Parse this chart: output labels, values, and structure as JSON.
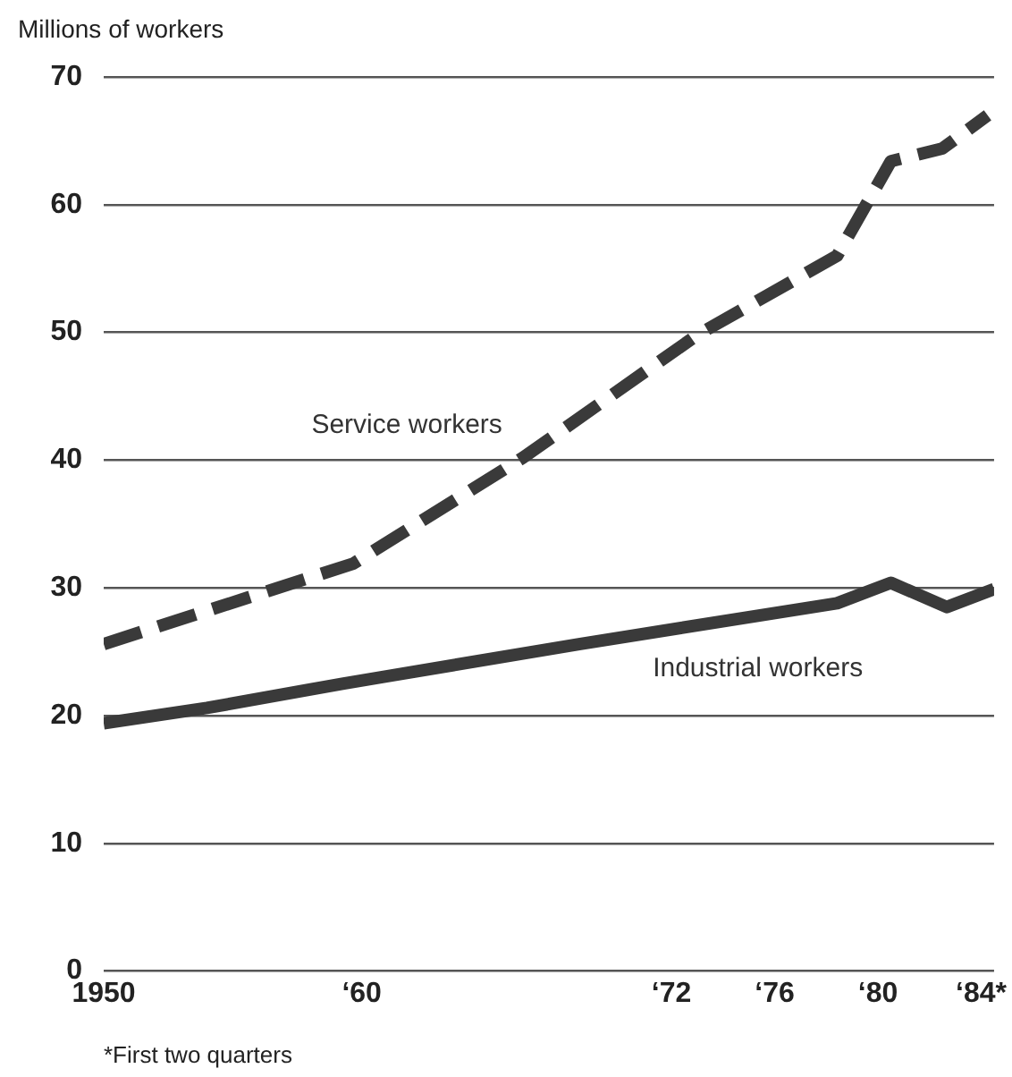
{
  "chart_data": {
    "type": "line",
    "ylabel": "Millions of workers",
    "xlim": [
      "1950",
      "1984-07"
    ],
    "xticks": [
      {
        "value": "1950",
        "label": "1950"
      },
      {
        "value": "1960",
        "label": "‘60"
      },
      {
        "value": "1972",
        "label": "‘72"
      },
      {
        "value": "1976",
        "label": "‘76"
      },
      {
        "value": "1980",
        "label": "‘80"
      },
      {
        "value": "1984",
        "label": "‘84*"
      }
    ],
    "ylim": [
      0,
      70
    ],
    "yticks": [
      0,
      10,
      20,
      30,
      40,
      50,
      60,
      70
    ],
    "grid": "y",
    "series": [
      {
        "name": "Service workers",
        "color": "#3a3a3a",
        "line_style": "dashed",
        "x": [
          "1950",
          "1959-09",
          "1966-04",
          "1973",
          "1978-06",
          "1980-07",
          "1982-07",
          "1984-04"
        ],
        "values": [
          25.6,
          31.9,
          40.2,
          49.8,
          56,
          63.4,
          64.4,
          67
        ]
      },
      {
        "name": "Industrial workers",
        "color": "#3a3a3a",
        "line_style": "solid",
        "x": [
          "1950",
          "1954",
          "1959-04",
          "1968-06",
          "1978-06",
          "1980-07",
          "1982-09",
          "1984-07"
        ],
        "values": [
          19.4,
          20.6,
          22.5,
          25.6,
          28.8,
          30.4,
          28.5,
          29.9
        ]
      }
    ],
    "annotations": [
      "*First two quarters"
    ]
  }
}
